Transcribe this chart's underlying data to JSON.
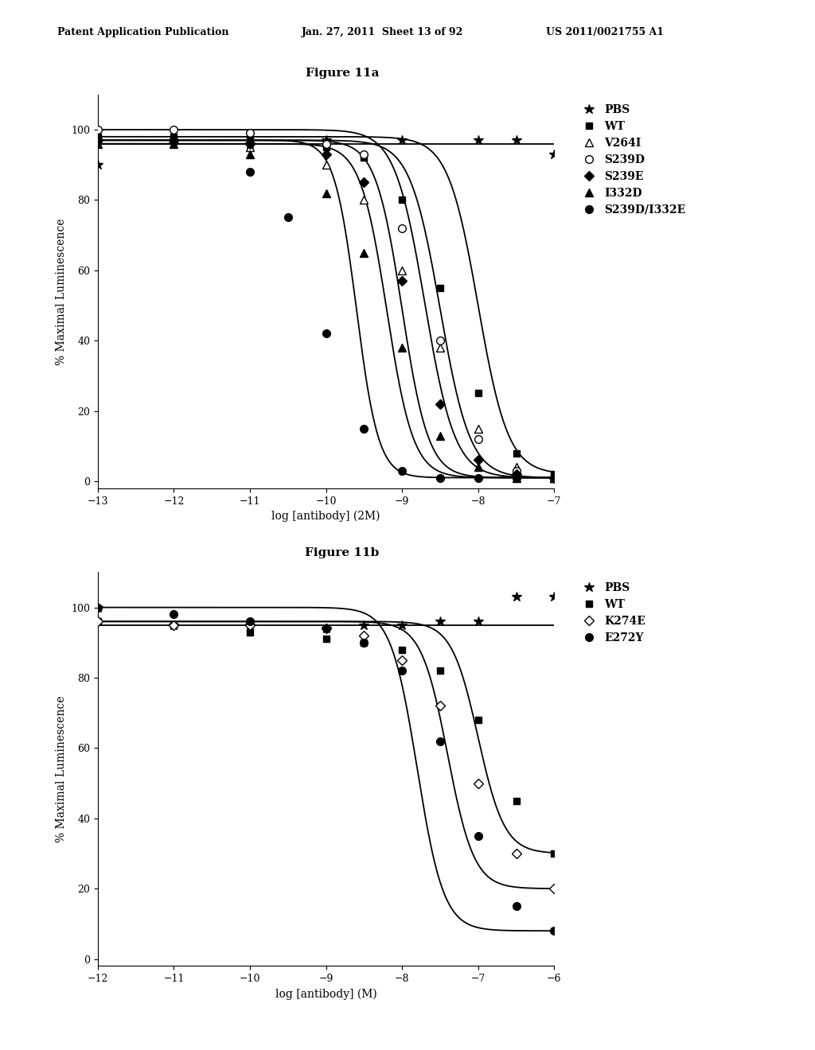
{
  "fig_title_a": "Figure 11a",
  "fig_title_b": "Figure 11b",
  "header_left": "Patent Application Publication",
  "header_mid": "Jan. 27, 2011  Sheet 13 of 92",
  "header_right": "US 2011/0021755 A1",
  "plot_a": {
    "xlabel": "log [antibody] (2M)",
    "ylabel": "% Maximal Luminescence",
    "xlim": [
      -13,
      -7
    ],
    "ylim": [
      -2,
      110
    ],
    "xticks": [
      -13,
      -12,
      -11,
      -10,
      -9,
      -8,
      -7
    ],
    "yticks": [
      0,
      20,
      40,
      60,
      80,
      100
    ],
    "series": [
      {
        "label": "PBS",
        "marker": "*",
        "mfc": "black",
        "mec": "black",
        "ms": 9,
        "ec50": -20.0,
        "top": 96,
        "bottom": 96,
        "hill": 1.0,
        "curve_flat": true,
        "flat_y": 96,
        "data_x": [
          -13,
          -12,
          -11,
          -10,
          -9,
          -8,
          -7.5,
          -7
        ],
        "data_y": [
          90,
          96,
          96,
          97,
          97,
          97,
          97,
          93
        ]
      },
      {
        "label": "WT",
        "marker": "s",
        "mfc": "black",
        "mec": "black",
        "ms": 6,
        "ec50": -8.0,
        "top": 98,
        "bottom": 2,
        "hill": 2.2,
        "curve_flat": false,
        "data_x": [
          -13,
          -12,
          -11,
          -10,
          -9.5,
          -9,
          -8.5,
          -8,
          -7.5,
          -7
        ],
        "data_y": [
          98,
          98,
          97,
          95,
          92,
          80,
          55,
          25,
          8,
          2
        ]
      },
      {
        "label": "V264I",
        "marker": "^",
        "mfc": "white",
        "mec": "black",
        "ms": 7,
        "ec50": -8.5,
        "top": 97,
        "bottom": 1,
        "hill": 2.2,
        "curve_flat": false,
        "data_x": [
          -13,
          -12,
          -11,
          -10,
          -9.5,
          -9,
          -8.5,
          -8,
          -7.5,
          -7
        ],
        "data_y": [
          97,
          97,
          95,
          90,
          80,
          60,
          38,
          15,
          4,
          1
        ]
      },
      {
        "label": "S239D",
        "marker": "o",
        "mfc": "white",
        "mec": "black",
        "ms": 7,
        "ec50": -8.7,
        "top": 100,
        "bottom": 1,
        "hill": 2.2,
        "curve_flat": false,
        "data_x": [
          -13,
          -12,
          -11,
          -10,
          -9.5,
          -9,
          -8.5,
          -8,
          -7.5,
          -7
        ],
        "data_y": [
          100,
          100,
          99,
          96,
          93,
          72,
          40,
          12,
          3,
          1
        ]
      },
      {
        "label": "S239E",
        "marker": "D",
        "mfc": "black",
        "mec": "black",
        "ms": 6,
        "ec50": -9.0,
        "top": 97,
        "bottom": 1,
        "hill": 2.5,
        "curve_flat": false,
        "data_x": [
          -13,
          -12,
          -11,
          -10,
          -9.5,
          -9,
          -8.5,
          -8,
          -7.5,
          -7
        ],
        "data_y": [
          97,
          97,
          96,
          93,
          85,
          57,
          22,
          6,
          2,
          1
        ]
      },
      {
        "label": "I332D",
        "marker": "^",
        "mfc": "black",
        "mec": "black",
        "ms": 7,
        "ec50": -9.2,
        "top": 96,
        "bottom": 1,
        "hill": 2.5,
        "curve_flat": false,
        "data_x": [
          -13,
          -12,
          -11,
          -10,
          -9.5,
          -9,
          -8.5,
          -8,
          -7.5,
          -7
        ],
        "data_y": [
          96,
          96,
          93,
          82,
          65,
          38,
          13,
          4,
          1,
          1
        ]
      },
      {
        "label": "S239D/I332E",
        "marker": "o",
        "mfc": "black",
        "mec": "black",
        "ms": 7,
        "ec50": -9.6,
        "top": 97,
        "bottom": 1,
        "hill": 3.0,
        "curve_flat": false,
        "data_x": [
          -13,
          -12,
          -11,
          -10.5,
          -10,
          -9.5,
          -9,
          -8.5,
          -8,
          -7.5
        ],
        "data_y": [
          97,
          97,
          88,
          75,
          42,
          15,
          3,
          1,
          1,
          1
        ]
      }
    ]
  },
  "plot_b": {
    "xlabel": "log [antibody] (M)",
    "ylabel": "% Maximal Luminescence",
    "xlim": [
      -12,
      -6
    ],
    "ylim": [
      -2,
      110
    ],
    "xticks": [
      -12,
      -11,
      -10,
      -9,
      -8,
      -7,
      -6
    ],
    "yticks": [
      0,
      20,
      40,
      60,
      80,
      100
    ],
    "series": [
      {
        "label": "PBS",
        "marker": "*",
        "mfc": "black",
        "mec": "black",
        "ms": 9,
        "ec50": -20.0,
        "top": 95,
        "bottom": 95,
        "hill": 1.0,
        "curve_flat": true,
        "flat_y": 95,
        "data_x": [
          -12,
          -11,
          -10,
          -9,
          -8.5,
          -8,
          -7.5,
          -7,
          -6.5,
          -6
        ],
        "data_y": [
          100,
          95,
          95,
          94,
          95,
          95,
          96,
          96,
          103,
          103
        ]
      },
      {
        "label": "WT",
        "marker": "s",
        "mfc": "black",
        "mec": "black",
        "ms": 6,
        "ec50": -7.0,
        "top": 96,
        "bottom": 30,
        "hill": 2.5,
        "curve_flat": false,
        "data_x": [
          -12,
          -11,
          -10,
          -9,
          -8.5,
          -8,
          -7.5,
          -7,
          -6.5,
          -6
        ],
        "data_y": [
          96,
          95,
          93,
          91,
          90,
          88,
          82,
          68,
          45,
          30
        ]
      },
      {
        "label": "K274E",
        "marker": "D",
        "mfc": "white",
        "mec": "black",
        "ms": 6,
        "ec50": -7.4,
        "top": 96,
        "bottom": 20,
        "hill": 2.5,
        "curve_flat": false,
        "data_x": [
          -12,
          -11,
          -10,
          -9,
          -8.5,
          -8,
          -7.5,
          -7,
          -6.5,
          -6
        ],
        "data_y": [
          96,
          95,
          95,
          94,
          92,
          85,
          72,
          50,
          30,
          20
        ]
      },
      {
        "label": "E272Y",
        "marker": "o",
        "mfc": "black",
        "mec": "black",
        "ms": 7,
        "ec50": -7.8,
        "top": 100,
        "bottom": 8,
        "hill": 2.5,
        "curve_flat": false,
        "data_x": [
          -12,
          -11,
          -10,
          -9,
          -8.5,
          -8,
          -7.5,
          -7,
          -6.5,
          -6
        ],
        "data_y": [
          100,
          98,
          96,
          94,
          90,
          82,
          62,
          35,
          15,
          8
        ]
      }
    ]
  },
  "background_color": "#ffffff",
  "text_color": "#000000",
  "fontsize_header": 9,
  "fontsize_title": 11,
  "fontsize_axis_label": 10,
  "fontsize_tick": 9,
  "fontsize_legend": 10
}
